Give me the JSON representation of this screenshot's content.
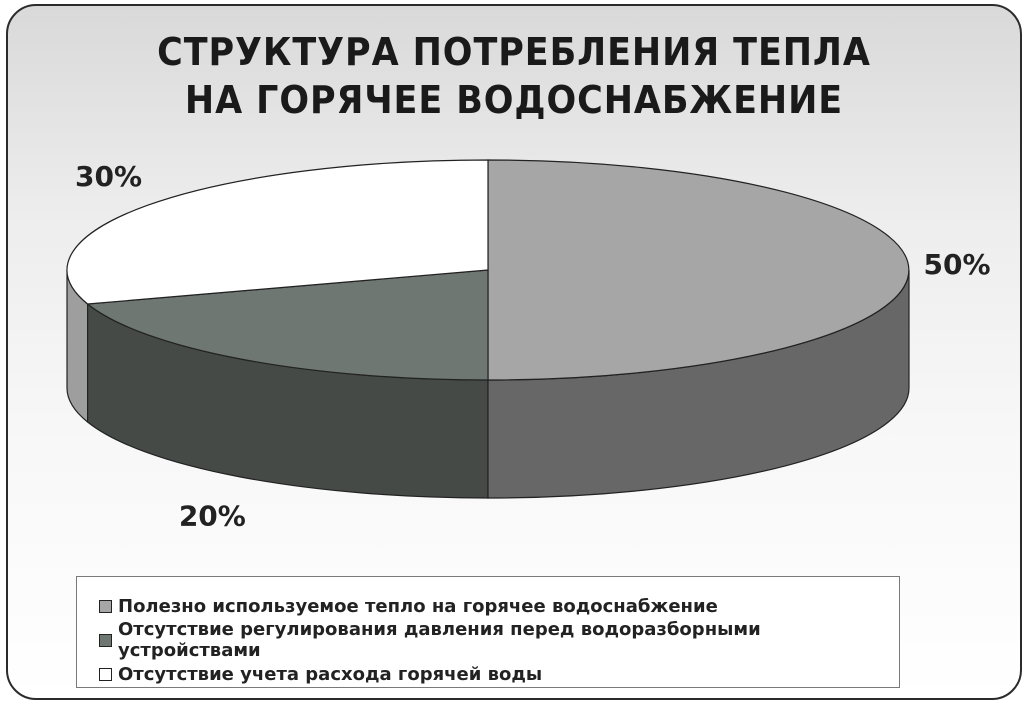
{
  "title": {
    "line1": "СТРУКТУРА ПОТРЕБЛЕНИЯ ТЕПЛА",
    "line2": "НА ГОРЯЧЕЕ ВОДОСНАБЖЕНИЕ"
  },
  "chart_data": {
    "type": "pie",
    "style": "3d",
    "slices": [
      {
        "label": "Полезно используемое тепло на горячее водоснабжение",
        "value": 50,
        "value_label": "50%",
        "color": "#a6a6a6"
      },
      {
        "label": "Отсутствие регулирования давления перед водоразборными устройствами",
        "value": 20,
        "value_label": "20%",
        "color": "#6f7773"
      },
      {
        "label": "Отсутствие учета расхода горячей воды",
        "value": 30,
        "value_label": "30%",
        "color": "#ffffff"
      }
    ],
    "legend_position": "bottom"
  }
}
